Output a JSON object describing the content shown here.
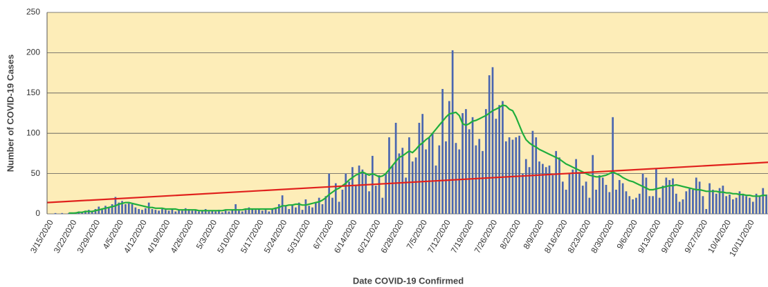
{
  "chart_data": {
    "type": "bar",
    "y_label": "Number of COVID-19 Cases",
    "x_label": "Date COVID-19 Confirmed",
    "ylim": [
      0,
      250
    ],
    "yticks": [
      0,
      50,
      100,
      150,
      200,
      250
    ],
    "grid": true,
    "background": "#fdedb8",
    "categories": [
      "3/15/2020",
      null,
      null,
      null,
      null,
      null,
      null,
      "3/22/2020",
      null,
      null,
      null,
      null,
      null,
      null,
      "3/29/2020",
      null,
      null,
      null,
      null,
      null,
      null,
      "4/5/2020",
      null,
      null,
      null,
      null,
      null,
      null,
      "4/12/2020",
      null,
      null,
      null,
      null,
      null,
      null,
      "4/19/2020",
      null,
      null,
      null,
      null,
      null,
      null,
      "4/26/2020",
      null,
      null,
      null,
      null,
      null,
      null,
      "5/3/2020",
      null,
      null,
      null,
      null,
      null,
      null,
      "5/10/2020",
      null,
      null,
      null,
      null,
      null,
      null,
      "5/17/2020",
      null,
      null,
      null,
      null,
      null,
      null,
      "5/24/2020",
      null,
      null,
      null,
      null,
      null,
      null,
      "5/31/2020",
      null,
      null,
      null,
      null,
      null,
      null,
      "6/7/2020",
      null,
      null,
      null,
      null,
      null,
      null,
      "6/14/2020",
      null,
      null,
      null,
      null,
      null,
      null,
      "6/21/2020",
      null,
      null,
      null,
      null,
      null,
      null,
      "6/28/2020",
      null,
      null,
      null,
      null,
      null,
      null,
      "7/5/2020",
      null,
      null,
      null,
      null,
      null,
      null,
      "7/12/2020",
      null,
      null,
      null,
      null,
      null,
      null,
      "7/19/2020",
      null,
      null,
      null,
      null,
      null,
      null,
      "7/26/2020",
      null,
      null,
      null,
      null,
      null,
      null,
      "8/2/2020",
      null,
      null,
      null,
      null,
      null,
      null,
      "8/9/2020",
      null,
      null,
      null,
      null,
      null,
      null,
      "8/16/2020",
      null,
      null,
      null,
      null,
      null,
      null,
      "8/23/2020",
      null,
      null,
      null,
      null,
      null,
      null,
      "8/30/2020",
      null,
      null,
      null,
      null,
      null,
      null,
      "9/6/2020",
      null,
      null,
      null,
      null,
      null,
      null,
      "9/13/2020",
      null,
      null,
      null,
      null,
      null,
      null,
      "9/20/2020",
      null,
      null,
      null,
      null,
      null,
      null,
      "9/27/2020",
      null,
      null,
      null,
      null,
      null,
      null,
      "10/4/2020",
      null,
      null,
      null,
      null,
      null,
      null,
      "10/11/2020",
      null,
      null,
      null,
      null,
      null
    ],
    "series": [
      {
        "type": "bar",
        "color": "#4a66b0",
        "values": [
          0,
          0,
          1,
          0,
          1,
          0,
          1,
          1,
          2,
          3,
          2,
          4,
          5,
          3,
          6,
          9,
          5,
          10,
          8,
          12,
          21,
          14,
          16,
          12,
          13,
          12,
          8,
          6,
          5,
          7,
          14,
          6,
          5,
          4,
          6,
          5,
          4,
          6,
          3,
          5,
          4,
          7,
          6,
          4,
          5,
          3,
          4,
          6,
          3,
          4,
          3,
          5,
          2,
          4,
          3,
          5,
          12,
          4,
          3,
          5,
          8,
          6,
          5,
          6,
          4,
          5,
          3,
          6,
          8,
          12,
          23,
          10,
          6,
          12,
          8,
          14,
          5,
          18,
          10,
          8,
          14,
          20,
          12,
          22,
          50,
          20,
          38,
          15,
          30,
          50,
          40,
          58,
          35,
          60,
          55,
          50,
          28,
          72,
          35,
          48,
          20,
          50,
          95,
          60,
          113,
          75,
          82,
          45,
          95,
          65,
          70,
          113,
          124,
          80,
          95,
          100,
          60,
          85,
          155,
          90,
          140,
          203,
          88,
          80,
          125,
          130,
          105,
          120,
          85,
          93,
          78,
          130,
          172,
          182,
          118,
          135,
          140,
          90,
          95,
          92,
          95,
          97,
          50,
          68,
          58,
          103,
          95,
          65,
          62,
          58,
          60,
          48,
          78,
          70,
          40,
          30,
          50,
          55,
          68,
          50,
          35,
          40,
          20,
          73,
          30,
          48,
          45,
          36,
          27,
          120,
          30,
          42,
          38,
          28,
          22,
          18,
          20,
          25,
          50,
          45,
          22,
          22,
          56,
          20,
          35,
          45,
          42,
          44,
          25,
          15,
          18,
          28,
          32,
          30,
          45,
          40,
          22,
          6,
          38,
          30,
          25,
          32,
          35,
          22,
          24,
          18,
          20,
          28,
          25,
          22,
          20,
          15,
          25,
          22,
          32,
          24
        ]
      },
      {
        "type": "line",
        "color": "#1fae3c",
        "values": [
          null,
          null,
          null,
          null,
          null,
          null,
          1,
          1,
          1,
          2,
          2,
          3,
          3,
          3,
          4,
          5,
          6,
          7,
          8,
          9,
          10,
          12,
          13,
          14,
          14,
          13,
          12,
          11,
          10,
          9,
          8,
          8,
          7,
          7,
          7,
          6,
          6,
          6,
          6,
          5,
          5,
          5,
          5,
          5,
          5,
          4,
          4,
          4,
          4,
          4,
          4,
          4,
          4,
          5,
          5,
          5,
          5,
          5,
          5,
          6,
          6,
          6,
          6,
          6,
          6,
          6,
          6,
          6,
          7,
          8,
          10,
          10,
          11,
          11,
          12,
          12,
          11,
          11,
          12,
          13,
          14,
          15,
          17,
          20,
          24,
          27,
          30,
          32,
          35,
          38,
          42,
          45,
          48,
          50,
          52,
          50,
          48,
          50,
          48,
          46,
          47,
          50,
          55,
          60,
          65,
          70,
          72,
          75,
          78,
          76,
          80,
          85,
          88,
          92,
          95,
          100,
          105,
          110,
          115,
          120,
          124,
          125,
          126,
          122,
          112,
          110,
          112,
          115,
          116,
          118,
          120,
          122,
          125,
          128,
          130,
          132,
          135,
          134,
          130,
          128,
          120,
          110,
          100,
          92,
          88,
          85,
          83,
          80,
          78,
          76,
          74,
          72,
          70,
          68,
          65,
          62,
          60,
          58,
          56,
          54,
          52,
          50,
          48,
          47,
          46,
          46,
          47,
          48,
          50,
          52,
          50,
          48,
          45,
          43,
          41,
          40,
          38,
          36,
          34,
          32,
          30,
          30,
          31,
          32,
          33,
          34,
          35,
          35,
          36,
          35,
          34,
          33,
          32,
          31,
          30,
          30,
          29,
          28,
          28,
          28,
          28,
          27,
          27,
          26,
          26,
          25,
          25,
          24,
          24,
          23,
          23,
          22,
          22,
          22,
          23,
          23
        ]
      }
    ],
    "trend_line": {
      "color": "#e0201c",
      "start": 14,
      "end": 64
    }
  }
}
